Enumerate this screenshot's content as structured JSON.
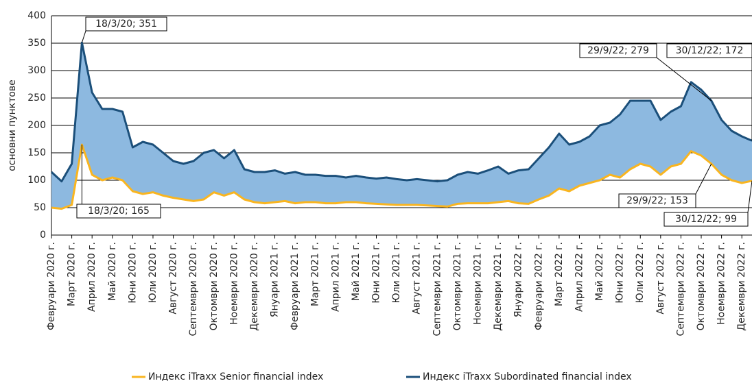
{
  "chart_data": {
    "type": "line",
    "ylabel": "основни пунктове",
    "categories": [
      "Февруари 2020 г.",
      null,
      "Март 2020 г.",
      null,
      "Април 2020 г.",
      null,
      "Май 2020 г.",
      null,
      "Юни 2020 г.",
      null,
      "Юли 2020 г.",
      null,
      "Август 2020 г.",
      null,
      "Септември 2020 г.",
      null,
      "Октомври 2020 г.",
      null,
      "Ноември 2020 г.",
      null,
      "Декември 2020 г.",
      null,
      "Януари 2021 г.",
      null,
      "Февруари 2021 г.",
      null,
      "Март 2021 г.",
      null,
      "Април 2021 г.",
      null,
      "Май 2021 г.",
      null,
      "Юни 2021 г.",
      null,
      "Юли 2021 г.",
      null,
      "Август 2021 г.",
      null,
      "Септември 2021 г.",
      null,
      "Октомври 2021 г.",
      null,
      "Ноември 2021 г.",
      null,
      "Декември 2021 г.",
      null,
      "Януари 2022 г.",
      null,
      "Февруари 2022 г.",
      null,
      "Март 2022 г.",
      null,
      "Април 2022 г.",
      null,
      "Май 2022 г.",
      null,
      "Юни 2022 г.",
      null,
      "Юли 2022 г.",
      null,
      "Август 2022 г.",
      null,
      "Септември 2022 г.",
      null,
      "Октомври 2022 г.",
      null,
      "Ноември 2022 г.",
      null,
      "Декември 2022 г.",
      null
    ],
    "series": [
      {
        "name": "Индекс iTraxx Senior financial index",
        "color": "#f9b520",
        "values": [
          50,
          48,
          55,
          165,
          110,
          100,
          105,
          100,
          80,
          75,
          78,
          72,
          68,
          65,
          62,
          65,
          78,
          72,
          78,
          65,
          60,
          58,
          60,
          62,
          58,
          60,
          60,
          58,
          58,
          60,
          60,
          58,
          57,
          56,
          55,
          55,
          55,
          54,
          53,
          52,
          57,
          58,
          58,
          58,
          60,
          62,
          58,
          57,
          65,
          72,
          85,
          80,
          90,
          95,
          100,
          110,
          105,
          120,
          130,
          125,
          110,
          125,
          130,
          153,
          145,
          130,
          110,
          100,
          95,
          99
        ]
      },
      {
        "name": "Индекс iTraxx Subordinated financial index",
        "color": "#1b4f7a",
        "values": [
          115,
          98,
          130,
          351,
          260,
          230,
          230,
          225,
          160,
          170,
          165,
          150,
          135,
          130,
          135,
          150,
          155,
          140,
          155,
          120,
          115,
          115,
          118,
          112,
          115,
          110,
          110,
          108,
          108,
          105,
          108,
          105,
          103,
          105,
          102,
          100,
          102,
          100,
          98,
          100,
          110,
          115,
          112,
          118,
          125,
          112,
          118,
          120,
          140,
          160,
          185,
          165,
          170,
          180,
          200,
          205,
          220,
          245,
          245,
          245,
          210,
          225,
          235,
          279,
          265,
          245,
          210,
          190,
          180,
          172
        ]
      }
    ],
    "fill_between_color": "#8db9e0",
    "ylim": [
      0,
      400
    ],
    "yticks": [
      0,
      50,
      100,
      150,
      200,
      250,
      300,
      350,
      400
    ],
    "grid": true,
    "annotations": [
      {
        "text": "18/3/20; 351"
      },
      {
        "text": "18/3/20; 165"
      },
      {
        "text": "29/9/22; 279"
      },
      {
        "text": "30/12/22; 172"
      },
      {
        "text": "29/9/22; 153"
      },
      {
        "text": "30/12/22; 99"
      }
    ]
  }
}
